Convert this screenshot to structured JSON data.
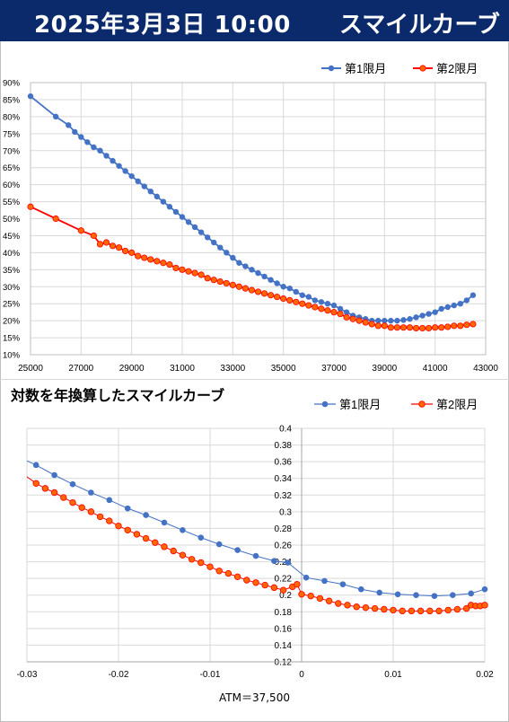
{
  "header": {
    "date": "2025年3月3日 10:00",
    "title": "スマイルカーブ"
  },
  "colors": {
    "header_bg": "#0b2a6b",
    "series1": "#4472c4",
    "series2": "#ff0000",
    "series2_fill": "#ff6600"
  },
  "chart_data": [
    {
      "type": "line",
      "title": "",
      "xlabel": "",
      "ylabel": "",
      "xlim": [
        25000,
        43000
      ],
      "ylim": [
        0.1,
        0.9
      ],
      "xticks": [
        "25000",
        "27000",
        "29000",
        "31000",
        "33000",
        "35000",
        "37000",
        "39000",
        "41000",
        "43000"
      ],
      "yticks": [
        "10%",
        "15%",
        "20%",
        "25%",
        "30%",
        "35%",
        "40%",
        "45%",
        "50%",
        "55%",
        "60%",
        "65%",
        "70%",
        "75%",
        "80%",
        "85%",
        "90%"
      ],
      "grid": true,
      "legend": "top-right",
      "series": [
        {
          "name": "第1限月",
          "points": [
            [
              25000,
              0.86
            ],
            [
              26000,
              0.8
            ],
            [
              26500,
              0.775
            ],
            [
              26750,
              0.755
            ],
            [
              27000,
              0.74
            ],
            [
              27250,
              0.725
            ],
            [
              27500,
              0.71
            ],
            [
              27750,
              0.7
            ],
            [
              28000,
              0.685
            ],
            [
              28250,
              0.67
            ],
            [
              28500,
              0.655
            ],
            [
              28750,
              0.64
            ],
            [
              29000,
              0.625
            ],
            [
              29250,
              0.61
            ],
            [
              29500,
              0.595
            ],
            [
              29750,
              0.58
            ],
            [
              30000,
              0.565
            ],
            [
              30250,
              0.55
            ],
            [
              30500,
              0.535
            ],
            [
              30750,
              0.52
            ],
            [
              31000,
              0.505
            ],
            [
              31250,
              0.49
            ],
            [
              31500,
              0.475
            ],
            [
              31750,
              0.46
            ],
            [
              32000,
              0.445
            ],
            [
              32250,
              0.43
            ],
            [
              32500,
              0.415
            ],
            [
              32750,
              0.4
            ],
            [
              33000,
              0.385
            ],
            [
              33250,
              0.37
            ],
            [
              33500,
              0.36
            ],
            [
              33750,
              0.35
            ],
            [
              34000,
              0.34
            ],
            [
              34250,
              0.33
            ],
            [
              34500,
              0.32
            ],
            [
              34750,
              0.31
            ],
            [
              35000,
              0.3
            ],
            [
              35250,
              0.295
            ],
            [
              35500,
              0.285
            ],
            [
              35750,
              0.275
            ],
            [
              36000,
              0.27
            ],
            [
              36250,
              0.26
            ],
            [
              36500,
              0.255
            ],
            [
              36750,
              0.25
            ],
            [
              37000,
              0.245
            ],
            [
              37250,
              0.235
            ],
            [
              37500,
              0.225
            ],
            [
              37750,
              0.215
            ],
            [
              38000,
              0.21
            ],
            [
              38250,
              0.205
            ],
            [
              38500,
              0.2
            ],
            [
              38750,
              0.2
            ],
            [
              39000,
              0.2
            ],
            [
              39250,
              0.2
            ],
            [
              39500,
              0.2
            ],
            [
              39750,
              0.202
            ],
            [
              40000,
              0.205
            ],
            [
              40250,
              0.21
            ],
            [
              40500,
              0.215
            ],
            [
              40750,
              0.22
            ],
            [
              41000,
              0.225
            ],
            [
              41250,
              0.235
            ],
            [
              41500,
              0.24
            ],
            [
              41750,
              0.245
            ],
            [
              42000,
              0.25
            ],
            [
              42250,
              0.26
            ],
            [
              42500,
              0.275
            ]
          ]
        },
        {
          "name": "第2限月",
          "points": [
            [
              25000,
              0.535
            ],
            [
              26000,
              0.5
            ],
            [
              27000,
              0.465
            ],
            [
              27500,
              0.45
            ],
            [
              27750,
              0.425
            ],
            [
              28000,
              0.43
            ],
            [
              28250,
              0.42
            ],
            [
              28500,
              0.415
            ],
            [
              28750,
              0.405
            ],
            [
              29000,
              0.4
            ],
            [
              29250,
              0.39
            ],
            [
              29500,
              0.385
            ],
            [
              29750,
              0.38
            ],
            [
              30000,
              0.375
            ],
            [
              30250,
              0.37
            ],
            [
              30500,
              0.365
            ],
            [
              30750,
              0.355
            ],
            [
              31000,
              0.35
            ],
            [
              31250,
              0.345
            ],
            [
              31500,
              0.34
            ],
            [
              31750,
              0.335
            ],
            [
              32000,
              0.325
            ],
            [
              32250,
              0.32
            ],
            [
              32500,
              0.315
            ],
            [
              32750,
              0.31
            ],
            [
              33000,
              0.305
            ],
            [
              33250,
              0.3
            ],
            [
              33500,
              0.295
            ],
            [
              33750,
              0.29
            ],
            [
              34000,
              0.285
            ],
            [
              34250,
              0.28
            ],
            [
              34500,
              0.275
            ],
            [
              34750,
              0.27
            ],
            [
              35000,
              0.265
            ],
            [
              35250,
              0.26
            ],
            [
              35500,
              0.255
            ],
            [
              35750,
              0.25
            ],
            [
              36000,
              0.245
            ],
            [
              36250,
              0.24
            ],
            [
              36500,
              0.235
            ],
            [
              36750,
              0.23
            ],
            [
              37000,
              0.225
            ],
            [
              37250,
              0.22
            ],
            [
              37500,
              0.21
            ],
            [
              37750,
              0.205
            ],
            [
              38000,
              0.2
            ],
            [
              38250,
              0.195
            ],
            [
              38500,
              0.19
            ],
            [
              38750,
              0.185
            ],
            [
              39000,
              0.185
            ],
            [
              39250,
              0.18
            ],
            [
              39500,
              0.18
            ],
            [
              39750,
              0.18
            ],
            [
              40000,
              0.18
            ],
            [
              40250,
              0.178
            ],
            [
              40500,
              0.178
            ],
            [
              40750,
              0.178
            ],
            [
              41000,
              0.18
            ],
            [
              41250,
              0.18
            ],
            [
              41500,
              0.182
            ],
            [
              41750,
              0.185
            ],
            [
              42000,
              0.185
            ],
            [
              42250,
              0.188
            ],
            [
              42500,
              0.19
            ]
          ]
        }
      ]
    },
    {
      "type": "line",
      "title": "対数を年換算したスマイルカーブ",
      "xlabel": "ATM＝37,500",
      "ylabel": "",
      "xlim": [
        -0.03,
        0.02
      ],
      "ylim": [
        0.12,
        0.4
      ],
      "xticks": [
        "-0.03",
        "-0.02",
        "-0.01",
        "0",
        "0.01",
        "0.02"
      ],
      "yticks": [
        "0.12",
        "0.14",
        "0.16",
        "0.18",
        "0.2",
        "0.22",
        "0.24",
        "0.26",
        "0.28",
        "0.3",
        "0.32",
        "0.34",
        "0.36",
        "0.38",
        "0.4"
      ],
      "grid": true,
      "legend": "top-right",
      "series": [
        {
          "name": "第1限月",
          "points": [
            [
              -0.03,
              0.361
            ],
            [
              -0.029,
              0.356
            ],
            [
              -0.027,
              0.344
            ],
            [
              -0.025,
              0.333
            ],
            [
              -0.023,
              0.323
            ],
            [
              -0.021,
              0.314
            ],
            [
              -0.019,
              0.304
            ],
            [
              -0.017,
              0.296
            ],
            [
              -0.015,
              0.287
            ],
            [
              -0.013,
              0.278
            ],
            [
              -0.011,
              0.269
            ],
            [
              -0.009,
              0.261
            ],
            [
              -0.007,
              0.254
            ],
            [
              -0.005,
              0.247
            ],
            [
              -0.003,
              0.241
            ],
            [
              -0.0015,
              0.239
            ],
            [
              0.0005,
              0.221
            ],
            [
              0.0025,
              0.217
            ],
            [
              0.0045,
              0.213
            ],
            [
              0.0065,
              0.207
            ],
            [
              0.0085,
              0.203
            ],
            [
              0.0105,
              0.201
            ],
            [
              0.0125,
              0.2
            ],
            [
              0.0145,
              0.199
            ],
            [
              0.0165,
              0.2
            ],
            [
              0.0185,
              0.202
            ],
            [
              0.02,
              0.207
            ]
          ]
        },
        {
          "name": "第2限月",
          "points": [
            [
              -0.03,
              0.342
            ],
            [
              -0.029,
              0.334
            ],
            [
              -0.028,
              0.328
            ],
            [
              -0.027,
              0.323
            ],
            [
              -0.026,
              0.317
            ],
            [
              -0.025,
              0.311
            ],
            [
              -0.024,
              0.305
            ],
            [
              -0.023,
              0.3
            ],
            [
              -0.022,
              0.294
            ],
            [
              -0.021,
              0.289
            ],
            [
              -0.02,
              0.283
            ],
            [
              -0.019,
              0.278
            ],
            [
              -0.018,
              0.273
            ],
            [
              -0.017,
              0.268
            ],
            [
              -0.016,
              0.263
            ],
            [
              -0.015,
              0.258
            ],
            [
              -0.014,
              0.253
            ],
            [
              -0.013,
              0.248
            ],
            [
              -0.012,
              0.243
            ],
            [
              -0.011,
              0.239
            ],
            [
              -0.01,
              0.234
            ],
            [
              -0.009,
              0.229
            ],
            [
              -0.008,
              0.226
            ],
            [
              -0.007,
              0.222
            ],
            [
              -0.006,
              0.218
            ],
            [
              -0.005,
              0.215
            ],
            [
              -0.004,
              0.212
            ],
            [
              -0.003,
              0.209
            ],
            [
              -0.002,
              0.206
            ],
            [
              -0.001,
              0.21
            ],
            [
              -0.0005,
              0.213
            ],
            [
              0.0,
              0.201
            ],
            [
              0.001,
              0.199
            ],
            [
              0.002,
              0.196
            ],
            [
              0.003,
              0.193
            ],
            [
              0.004,
              0.19
            ],
            [
              0.005,
              0.188
            ],
            [
              0.006,
              0.186
            ],
            [
              0.007,
              0.185
            ],
            [
              0.008,
              0.184
            ],
            [
              0.009,
              0.183
            ],
            [
              0.01,
              0.182
            ],
            [
              0.011,
              0.181
            ],
            [
              0.012,
              0.181
            ],
            [
              0.013,
              0.181
            ],
            [
              0.014,
              0.181
            ],
            [
              0.015,
              0.181
            ],
            [
              0.016,
              0.182
            ],
            [
              0.017,
              0.183
            ],
            [
              0.018,
              0.184
            ],
            [
              0.0185,
              0.188
            ],
            [
              0.019,
              0.187
            ],
            [
              0.0195,
              0.187
            ],
            [
              0.02,
              0.188
            ]
          ]
        }
      ]
    }
  ]
}
